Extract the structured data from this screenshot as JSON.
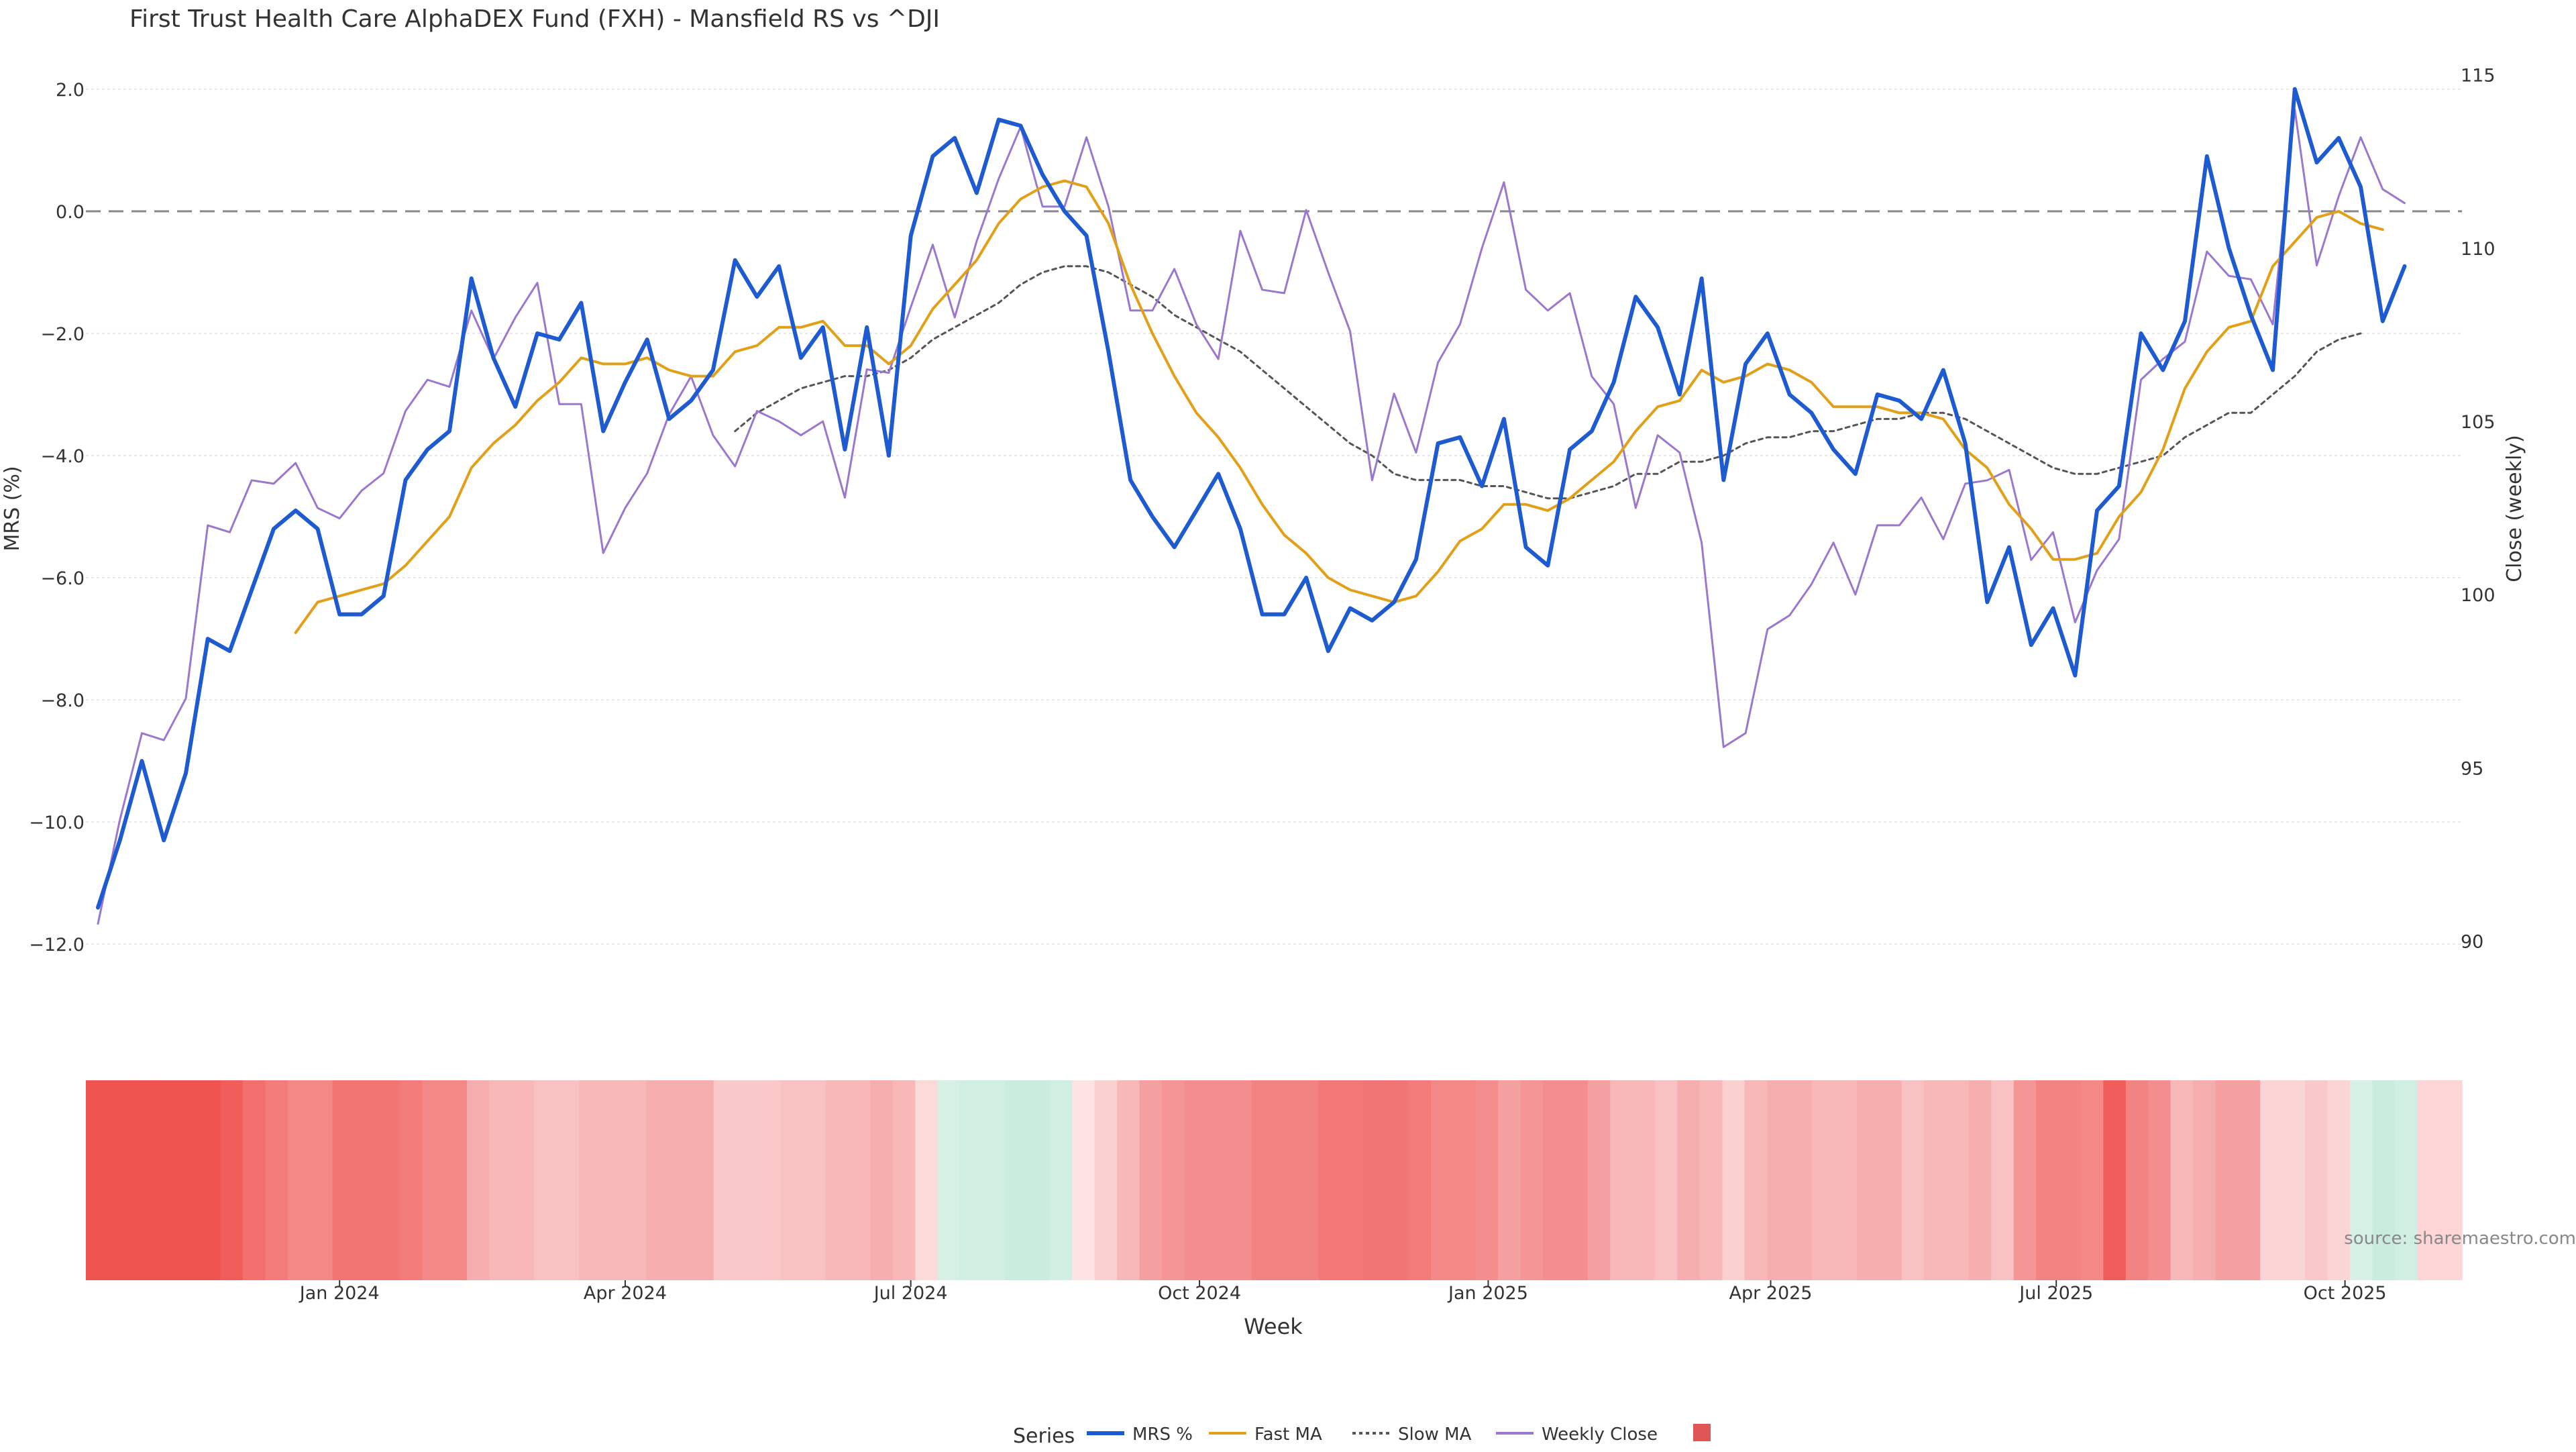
{
  "chart_data": {
    "type": "line",
    "title": "First Trust Health Care AlphaDEX Fund (FXH) - Mansfield RS vs ^DJI",
    "xlabel": "Week",
    "ylabel_left": "MRS (%)",
    "ylabel_right": "Close (weekly)",
    "ylim_left": [
      -12.8,
      2.8
    ],
    "ylim_right": [
      88.5,
      116
    ],
    "yticks_left": [
      2.0,
      0.0,
      -2.0,
      -4.0,
      -6.0,
      -8.0,
      -10.0,
      -12.0
    ],
    "yticks_right": [
      115,
      110,
      105,
      100,
      95,
      90
    ],
    "x_start": "2023-10-16",
    "x_end": "2025-11-03",
    "x_ticks": [
      {
        "label": "Jan 2024",
        "date": "2024-01-01"
      },
      {
        "label": "Apr 2024",
        "date": "2024-04-01"
      },
      {
        "label": "Jul 2024",
        "date": "2024-07-01"
      },
      {
        "label": "Oct 2024",
        "date": "2024-10-01"
      },
      {
        "label": "Jan 2025",
        "date": "2025-01-01"
      },
      {
        "label": "Apr 2025",
        "date": "2025-04-01"
      },
      {
        "label": "Jul 2025",
        "date": "2025-07-01"
      },
      {
        "label": "Oct 2025",
        "date": "2025-10-01"
      }
    ],
    "zero_line": 0,
    "grid": true,
    "legend_position": "bottom-center",
    "legend_title": "Series",
    "series": [
      {
        "name": "MRS %",
        "axis": "left",
        "color": "#1f5bd0",
        "style": "solid",
        "start_week": 0,
        "values": [
          -11.4,
          -10.3,
          -9.0,
          -10.3,
          -9.2,
          -7.0,
          -7.2,
          -6.2,
          -5.2,
          -4.9,
          -5.2,
          -6.6,
          -6.6,
          -6.3,
          -4.4,
          -3.9,
          -3.6,
          -1.1,
          -2.4,
          -3.2,
          -2.0,
          -2.1,
          -1.5,
          -3.6,
          -2.8,
          -2.1,
          -3.4,
          -3.1,
          -2.6,
          -0.8,
          -1.4,
          -0.9,
          -2.4,
          -1.9,
          -3.9,
          -1.9,
          -4.0,
          -0.4,
          0.9,
          1.2,
          0.3,
          1.5,
          1.4,
          0.6,
          0.0,
          -0.4,
          -2.3,
          -4.4,
          -5.0,
          -5.5,
          -4.9,
          -4.3,
          -5.2,
          -6.6,
          -6.6,
          -6.0,
          -7.2,
          -6.5,
          -6.7,
          -6.4,
          -5.7,
          -3.8,
          -3.7,
          -4.5,
          -3.4,
          -5.5,
          -5.8,
          -3.9,
          -3.6,
          -2.8,
          -1.4,
          -1.9,
          -3.0,
          -1.1,
          -4.4,
          -2.5,
          -2.0,
          -3.0,
          -3.3,
          -3.9,
          -4.3,
          -3.0,
          -3.1,
          -3.4,
          -2.6,
          -3.8,
          -6.4,
          -5.5,
          -7.1,
          -6.5,
          -7.6,
          -4.9,
          -4.5,
          -2.0,
          -2.6,
          -1.8,
          0.9,
          -0.6,
          -1.7,
          -2.6,
          2.0,
          0.8,
          1.2,
          0.4,
          -1.8,
          -0.9
        ]
      },
      {
        "name": "Fast MA",
        "axis": "left",
        "color": "#e2a018",
        "style": "solid",
        "start_week": 9,
        "values": [
          -6.9,
          -6.4,
          -6.3,
          -6.2,
          -6.1,
          -5.8,
          -5.4,
          -5.0,
          -4.2,
          -3.8,
          -3.5,
          -3.1,
          -2.8,
          -2.4,
          -2.5,
          -2.5,
          -2.4,
          -2.6,
          -2.7,
          -2.7,
          -2.3,
          -2.2,
          -1.9,
          -1.9,
          -1.8,
          -2.2,
          -2.2,
          -2.5,
          -2.2,
          -1.6,
          -1.2,
          -0.8,
          -0.2,
          0.2,
          0.4,
          0.5,
          0.4,
          -0.2,
          -1.2,
          -2.0,
          -2.7,
          -3.3,
          -3.7,
          -4.2,
          -4.8,
          -5.3,
          -5.6,
          -6.0,
          -6.2,
          -6.3,
          -6.4,
          -6.3,
          -5.9,
          -5.4,
          -5.2,
          -4.8,
          -4.8,
          -4.9,
          -4.7,
          -4.4,
          -4.1,
          -3.6,
          -3.2,
          -3.1,
          -2.6,
          -2.8,
          -2.7,
          -2.5,
          -2.6,
          -2.8,
          -3.2,
          -3.2,
          -3.2,
          -3.3,
          -3.3,
          -3.4,
          -3.9,
          -4.2,
          -4.8,
          -5.2,
          -5.7,
          -5.7,
          -5.6,
          -5.0,
          -4.6,
          -3.9,
          -2.9,
          -2.3,
          -1.9,
          -1.8,
          -0.9,
          -0.5,
          -0.1,
          0.0,
          -0.2,
          -0.3
        ]
      },
      {
        "name": "Slow MA",
        "axis": "left",
        "color": "#555555",
        "style": "dotted",
        "start_week": 29,
        "values": [
          -3.6,
          -3.3,
          -3.1,
          -2.9,
          -2.8,
          -2.7,
          -2.7,
          -2.6,
          -2.4,
          -2.1,
          -1.9,
          -1.7,
          -1.5,
          -1.2,
          -1.0,
          -0.9,
          -0.9,
          -1.0,
          -1.2,
          -1.4,
          -1.7,
          -1.9,
          -2.1,
          -2.3,
          -2.6,
          -2.9,
          -3.2,
          -3.5,
          -3.8,
          -4.0,
          -4.3,
          -4.4,
          -4.4,
          -4.4,
          -4.5,
          -4.5,
          -4.6,
          -4.7,
          -4.7,
          -4.6,
          -4.5,
          -4.3,
          -4.3,
          -4.1,
          -4.1,
          -4.0,
          -3.8,
          -3.7,
          -3.7,
          -3.6,
          -3.6,
          -3.5,
          -3.4,
          -3.4,
          -3.3,
          -3.3,
          -3.4,
          -3.6,
          -3.8,
          -4.0,
          -4.2,
          -4.3,
          -4.3,
          -4.2,
          -4.1,
          -4.0,
          -3.7,
          -3.5,
          -3.3,
          -3.3,
          -3.0,
          -2.7,
          -2.3,
          -2.1,
          -2.0
        ]
      },
      {
        "name": "Weekly Close",
        "axis": "right",
        "color": "#9b78d0",
        "style": "solid",
        "start_week": 0,
        "values": [
          90.5,
          93.5,
          96.0,
          95.8,
          97.0,
          102.0,
          101.8,
          103.3,
          103.2,
          103.8,
          102.5,
          102.2,
          103.0,
          103.5,
          105.3,
          106.2,
          106.0,
          108.2,
          106.8,
          108.0,
          109.0,
          105.5,
          105.5,
          101.2,
          102.5,
          103.5,
          105.2,
          106.3,
          104.6,
          103.7,
          105.3,
          105.0,
          104.6,
          105.0,
          102.8,
          106.5,
          106.4,
          108.3,
          110.1,
          108.0,
          110.2,
          112.0,
          113.5,
          111.2,
          111.2,
          113.2,
          111.2,
          108.2,
          108.2,
          109.4,
          107.8,
          106.8,
          110.5,
          108.8,
          108.7,
          111.1,
          109.3,
          107.6,
          103.3,
          105.8,
          104.1,
          106.7,
          107.8,
          110.0,
          111.9,
          108.8,
          108.2,
          108.7,
          106.3,
          105.5,
          102.5,
          104.6,
          104.1,
          101.5,
          95.6,
          96.0,
          99.0,
          99.4,
          100.3,
          101.5,
          100.0,
          102.0,
          102.0,
          102.8,
          101.6,
          103.2,
          103.3,
          103.6,
          101.0,
          101.8,
          99.2,
          100.7,
          101.6,
          106.2,
          106.8,
          107.3,
          109.9,
          109.2,
          109.1,
          107.8,
          114.0,
          109.5,
          111.5,
          113.2,
          111.7,
          111.3
        ]
      }
    ],
    "heatmap_strip": {
      "description_label": "",
      "cell_colors": [
        "#ef5350",
        "#ef5350",
        "#ef5350",
        "#ef5350",
        "#ef5350",
        "#ef5350",
        "#f05e5c",
        "#f26f6d",
        "#f37b79",
        "#f48886",
        "#f48886",
        "#f27573",
        "#f27573",
        "#f27573",
        "#f37b79",
        "#f48886",
        "#f48886",
        "#f6adad",
        "#f8b8b8",
        "#f8b8b8",
        "#f9c2c2",
        "#f9c2c2",
        "#f8b8b8",
        "#f8b8b8",
        "#f8b8b8",
        "#f6adad",
        "#f6adad",
        "#f6adad",
        "#f9c8c8",
        "#f9c8c8",
        "#fac8c8",
        "#f9c2c2",
        "#f9c2c2",
        "#f8b8b8",
        "#f8b8b8",
        "#f6adad",
        "#f8b8b8",
        "#fbdada",
        "#d6f0e6",
        "#d0eee2",
        "#d0eee2",
        "#c9ecdf",
        "#c9ecdf",
        "#d0eee2",
        "#fde3e3",
        "#fbd0d0",
        "#f8b8b8",
        "#f5a0a0",
        "#f59595",
        "#f48e8e",
        "#f48e8e",
        "#f48e8e",
        "#f38282",
        "#f38282",
        "#f38282",
        "#f27878",
        "#f27878",
        "#f27575",
        "#f27575",
        "#f37b79",
        "#f48886",
        "#f48886",
        "#f48e8e",
        "#f5a0a0",
        "#f59595",
        "#f48e8e",
        "#f48e8e",
        "#f5a0a0",
        "#f8b8b8",
        "#f8b8b8",
        "#f9c2c2",
        "#f6adad",
        "#f8b8b8",
        "#fbd0d0",
        "#f8b8b8",
        "#f6adad",
        "#f6adad",
        "#f8b8b8",
        "#f8b8b8",
        "#f6adad",
        "#f6adad",
        "#f9c2c2",
        "#f8b8b8",
        "#f8b8b8",
        "#f6adad",
        "#f9c2c2",
        "#f59595",
        "#f38282",
        "#f38282",
        "#f48886",
        "#f05e5c",
        "#f38282",
        "#f48e8e",
        "#f8b8b8",
        "#f6adad",
        "#f5a0a0",
        "#f5a0a0",
        "#fbd5d5",
        "#fbd5d5",
        "#f9c8c8",
        "#fbd5d5",
        "#d6f0e6",
        "#c9ecdf",
        "#d0eee2",
        "#fcd6d6",
        "#fcd6d6"
      ]
    },
    "source_note": "source: sharemaestro.com"
  },
  "legend": {
    "title": "Series",
    "items": [
      {
        "label": "MRS %",
        "color": "#1f5bd0",
        "style": "solid"
      },
      {
        "label": "Fast MA",
        "color": "#e2a018",
        "style": "solid"
      },
      {
        "label": "Slow MA",
        "color": "#555555",
        "style": "dotted"
      },
      {
        "label": "Weekly Close",
        "color": "#9b78d0",
        "style": "solid"
      },
      {
        "label": "",
        "color": "#e05555",
        "style": "square"
      }
    ]
  }
}
